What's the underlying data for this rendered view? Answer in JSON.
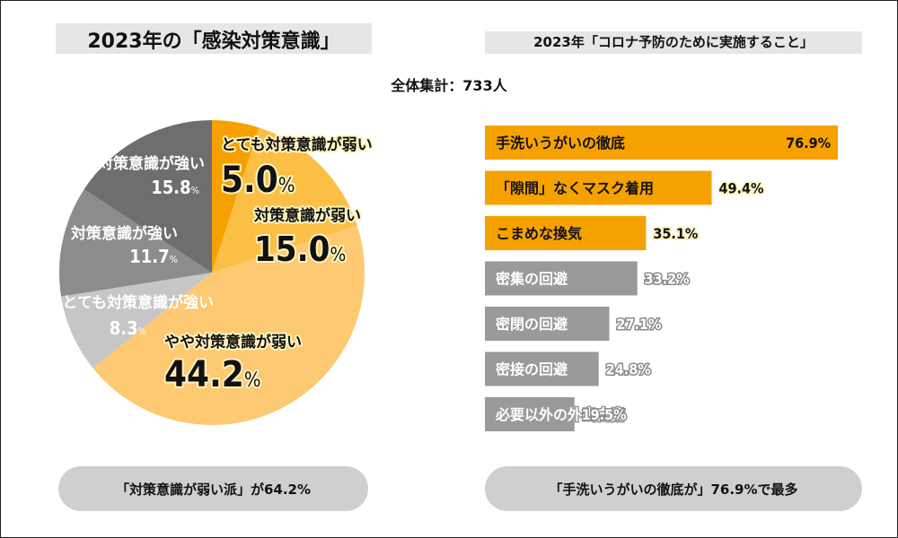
{
  "left_title": "2023年の「感染対策意識」",
  "right_title": "2023年「コロナ予防のために実施すること」",
  "total_label": "全体集計：733人",
  "left_summary": "「対策意識が弱い派」が64.2%",
  "right_summary": "「手洗いうがいの徹底が」76.9%で最多",
  "colors": {
    "orange": "#f5a200",
    "orange_mid": "#fbbf45",
    "orange_light": "#fdc972",
    "gray_dark": "#6e6e6e",
    "gray_mid": "#8c8c8c",
    "gray_light": "#c6c6c6",
    "bar_gray": "#9a9a9a"
  },
  "chart_data": [
    {
      "type": "pie",
      "slices": [
        {
          "label": "とても対策意識が弱い",
          "value": 5.0,
          "display": "5.0",
          "color": "#f5a200"
        },
        {
          "label": "対策意識が弱い",
          "value": 15.0,
          "display": "15.0",
          "color": "#fbbf45"
        },
        {
          "label": "やや対策意識が弱い",
          "value": 44.2,
          "display": "44.2",
          "color": "#fdc972"
        },
        {
          "label": "とても対策意識が強い",
          "value": 8.3,
          "display": "8.3",
          "color": "#c6c6c6"
        },
        {
          "label": "対策意識が強い",
          "value": 11.7,
          "display": "11.7",
          "color": "#8c8c8c"
        },
        {
          "label": "やや対策意識が強い",
          "value": 15.8,
          "display": "15.8",
          "color": "#6e6e6e"
        }
      ],
      "unit": "%"
    },
    {
      "type": "bar",
      "orientation": "horizontal",
      "categories": [
        "手洗いうがいの徹底",
        "「隙間」なくマスク着用",
        "こまめな換気",
        "密集の回避",
        "密閉の回避",
        "密接の回避",
        "必要以外の外出自粛"
      ],
      "values": [
        76.9,
        49.4,
        35.1,
        33.2,
        27.1,
        24.8,
        19.5
      ],
      "value_labels": [
        "76.9%",
        "49.4%",
        "35.1%",
        "33.2%",
        "27.1%",
        "24.8%",
        "19.5%"
      ],
      "highlight": [
        true,
        true,
        true,
        false,
        false,
        false,
        false
      ],
      "xlim": [
        0,
        76.9
      ]
    }
  ]
}
